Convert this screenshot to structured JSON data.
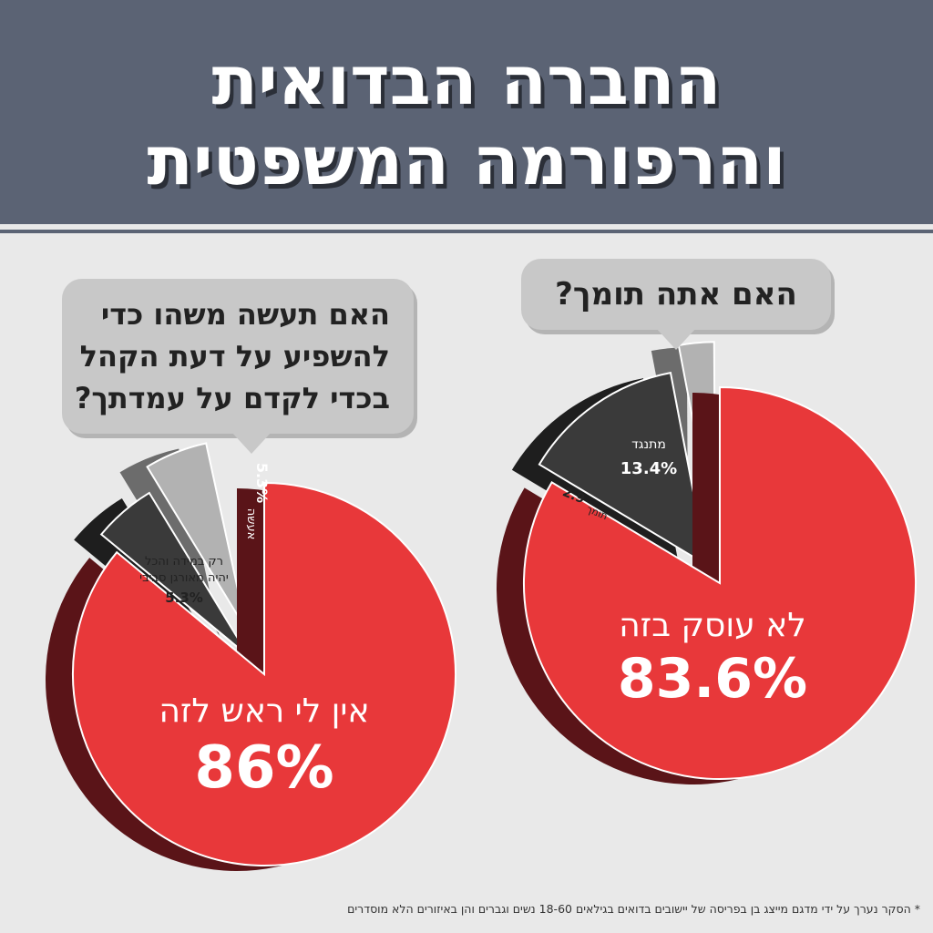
{
  "header": {
    "title_line1": "החברה הבדואית",
    "title_line2": "והרפורמה המשפטית"
  },
  "colors": {
    "header_bg": "#5b6374",
    "red": "#e8383a",
    "dark_red": "#5a1418",
    "dark_gray": "#3a3a3a",
    "mid_gray": "#5e5e5e",
    "light_gray": "#b2b2b2",
    "bubble_gray": "#c8c8c8"
  },
  "chart_data": [
    {
      "type": "pie",
      "question": "האם אתה תומך?",
      "slices": [
        {
          "label": "לא עוסק בזה",
          "value": 83.6,
          "display": "83.6%",
          "color": "#e8383a"
        },
        {
          "label": "מתנגד",
          "value": 13.4,
          "display": "13.4%",
          "color": "#3a3a3a"
        },
        {
          "label": "תומך",
          "value": 2.9,
          "display": "2.9",
          "color": "#b2b2b2"
        }
      ]
    },
    {
      "type": "pie",
      "question_lines": [
        "האם תעשה משהו כדי",
        "להשפיע על דעת הקהל",
        "בכדי לקדם על עמדתך?"
      ],
      "slices": [
        {
          "label": "אין לי ראש לזה",
          "value": 86,
          "display": "86%",
          "color": "#e8383a"
        },
        {
          "label": "אעשה",
          "value": 5.3,
          "display": "5.3%",
          "color": "#3a3a3a"
        },
        {
          "label_lines": [
            "רק במידה והכל",
            "יהיה מאורגן סביבי"
          ],
          "value": 5.3,
          "display": "5.3%",
          "color": "#b2b2b2"
        }
      ]
    }
  ],
  "footnote": "* הסקר נערך על ידי מדגם מייצג בן בפריסה של יישובים בדואים בגילאים 18-60 נשים וגברים והן באיזורים הלא מוסדרים"
}
